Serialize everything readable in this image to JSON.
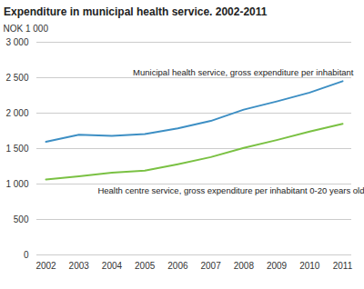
{
  "chart_data": {
    "type": "line",
    "title": "Expenditure in municipal health service. 2002-2011",
    "y_label": "NOK 1 000",
    "x": [
      2002,
      2003,
      2004,
      2005,
      2006,
      2007,
      2008,
      2009,
      2010,
      2011
    ],
    "series": [
      {
        "name": "Municipal health service, gross expenditure per inhabitant",
        "color": "#3d8fc4",
        "values": [
          1595,
          1695,
          1680,
          1705,
          1785,
          1890,
          2050,
          2165,
          2290,
          2450
        ]
      },
      {
        "name": "Health centre service, gross expenditure per inhabitant 0-20 years old",
        "color": "#7ac143",
        "values": [
          1065,
          1110,
          1160,
          1190,
          1280,
          1380,
          1510,
          1620,
          1740,
          1850
        ]
      }
    ],
    "xlim": [
      2002,
      2011
    ],
    "xticks": [
      2002,
      2003,
      2004,
      2005,
      2006,
      2007,
      2008,
      2009,
      2010,
      2011
    ],
    "ylim": [
      0,
      3000
    ],
    "yticks": [
      0,
      500,
      {
        "value": 1000,
        "label": "1 000"
      },
      {
        "value": 1500,
        "label": "1 500"
      },
      {
        "value": 2000,
        "label": "2 000"
      },
      {
        "value": 2500,
        "label": "2 500"
      },
      {
        "value": 3000,
        "label": "3 000"
      }
    ],
    "grid": true
  }
}
